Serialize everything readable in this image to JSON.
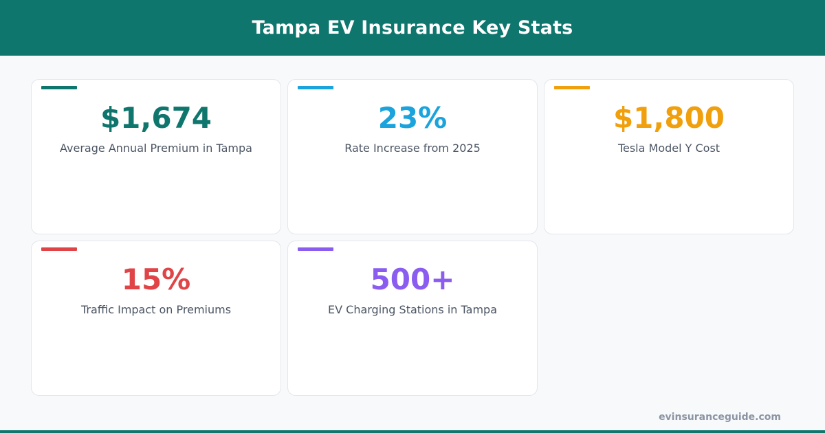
{
  "header": {
    "title": "Tampa EV Insurance Key Stats"
  },
  "stats": [
    {
      "value": "$1,674",
      "label": "Average Annual Premium in Tampa",
      "color": "#0f766e"
    },
    {
      "value": "23%",
      "label": "Rate Increase from 2025",
      "color": "#1aa3dc"
    },
    {
      "value": "$1,800",
      "label": "Tesla Model Y Cost",
      "color": "#f0a00c"
    },
    {
      "value": "15%",
      "label": "Traffic Impact on Premiums",
      "color": "#e04446"
    },
    {
      "value": "500+",
      "label": "EV Charging Stations in Tampa",
      "color": "#8b5cf0"
    }
  ],
  "footer": {
    "site": "evinsuranceguide.com"
  },
  "colors": {
    "brand": "#0f766e",
    "background": "#f8f9fb"
  }
}
